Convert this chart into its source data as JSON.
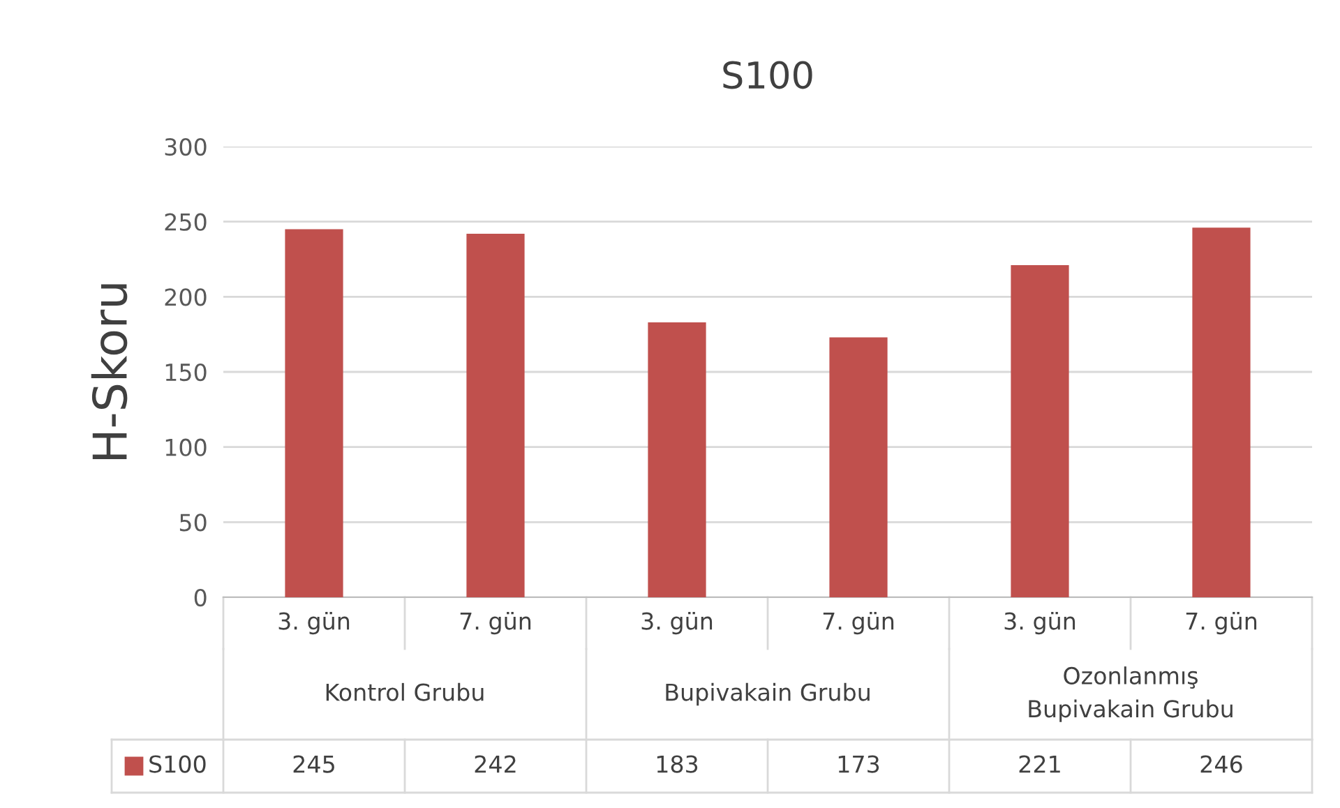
{
  "chart_data": {
    "type": "bar",
    "title": "S100",
    "ylabel": "H-Skoru",
    "categories": [
      "3. gün",
      "7. gün",
      "3. gün",
      "7. gün",
      "3. gün",
      "7. gün"
    ],
    "series": [
      {
        "name": "S100",
        "color": "#c0504d",
        "values": [
          245,
          242,
          183,
          173,
          221,
          246
        ]
      }
    ],
    "annotations": [
      "Kontrol Grubu",
      "Bupivakain Grubu",
      "Ozonlanmış\nBupivakain Grubu"
    ],
    "ylim": [
      0,
      300
    ],
    "yticks": [
      0,
      50,
      100,
      150,
      200,
      250,
      300
    ],
    "grid": "y",
    "data_labels": true,
    "legend": "bottom"
  }
}
